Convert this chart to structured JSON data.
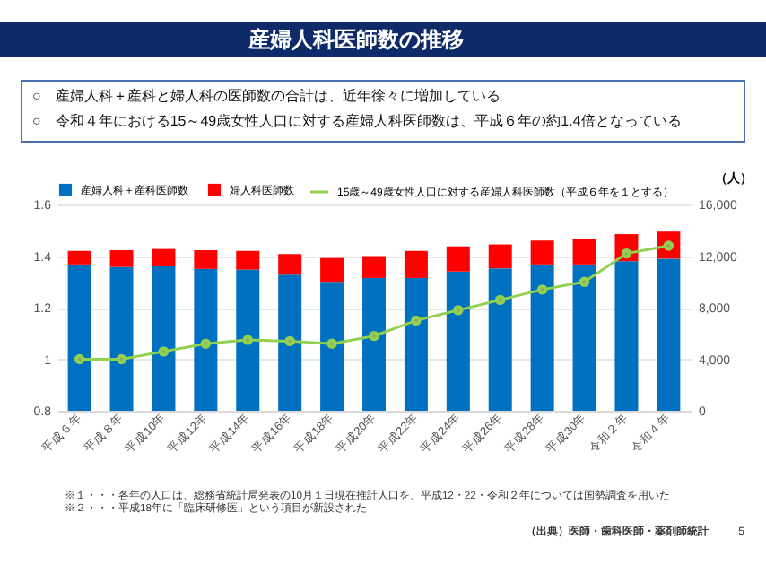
{
  "chart_data": {
    "type": "bar",
    "title": "産婦人科医師数の推移",
    "subtitle": "○　産婦人科＋産科と婦人科の医師数の合計は、近年徐々に増加している\n○　令和４年における15～49歳女性人口に対する産婦人科医師数は、平成６年の約1.4倍となっている",
    "categories": [
      "平成６年",
      "平成８年",
      "平成10年",
      "平成12年",
      "平成14年",
      "平成16年",
      "平成18年",
      "平成20年",
      "平成22年",
      "平成24年",
      "平成26年",
      "平成28年",
      "平成30年",
      "令和２年",
      "令和４年"
    ],
    "stacked": true,
    "series": [
      {
        "name": "産婦人科＋産科医師数",
        "color": "#0070c0",
        "axis": "y2",
        "values": [
          11350,
          11150,
          11200,
          11000,
          10950,
          10550,
          10000,
          10300,
          10300,
          10800,
          11050,
          11350,
          11350,
          11600,
          11800
        ]
      },
      {
        "name": "婦人科医師数",
        "color": "#ff0000",
        "axis": "y2",
        "values": [
          1050,
          1300,
          1350,
          1450,
          1450,
          1600,
          1850,
          1700,
          2100,
          1950,
          1850,
          1850,
          2000,
          2100,
          2100
        ]
      },
      {
        "name": "15歳～49歳女性人口に対する産婦人科医師数（平成６年を１とする）",
        "color": "#92d050",
        "type": "line",
        "axis": "y",
        "values": [
          1.0,
          1.0,
          1.03,
          1.06,
          1.075,
          1.07,
          1.06,
          1.09,
          1.15,
          1.19,
          1.23,
          1.27,
          1.3,
          1.41,
          1.44
        ]
      }
    ],
    "ylim": [
      0.8,
      1.6
    ],
    "yticks": [
      0.8,
      1,
      1.2,
      1.4,
      1.6
    ],
    "y2lim": [
      0,
      16000
    ],
    "y2ticks": [
      0,
      {
        "value": 4000,
        "label": "4,000"
      },
      {
        "value": 8000,
        "label": "8,000"
      },
      {
        "value": 12000,
        "label": "12,000"
      },
      {
        "value": 16000,
        "label": "16,000"
      }
    ],
    "y2label": "（人）",
    "grid": "y",
    "legend": "top",
    "marker": "circle",
    "line_style": "solid",
    "annotations": [
      "※１・・・各年の人口は、総務省統計局発表の10月１日現在推計人口を、平成12・22・令和２年については国勢調査を用いた",
      "※２・・・平成18年に「臨床研修医」という項目が新設された",
      "（出典）医師・歯科医師・薬剤師統計",
      "5"
    ]
  }
}
